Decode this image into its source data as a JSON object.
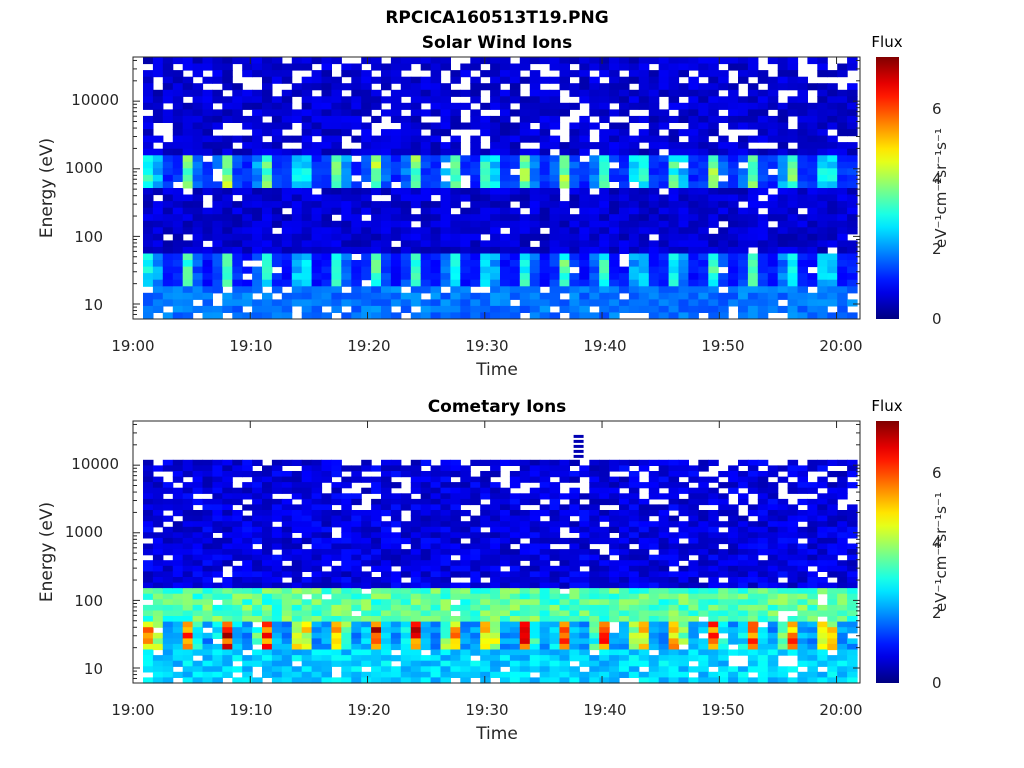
{
  "figure": {
    "title": "RPCICA160513T19.PNG"
  },
  "chart_data": [
    {
      "type": "heatmap",
      "title": "Solar Wind Ions",
      "xlabel": "Time",
      "ylabel": "Energy (eV)",
      "x_range": [
        "19:00",
        "20:02"
      ],
      "x_ticks": [
        "19:00",
        "19:10",
        "19:20",
        "19:30",
        "19:40",
        "19:50",
        "20:00"
      ],
      "y_scale": "log",
      "y_range": [
        6,
        45000
      ],
      "y_ticks": [
        "10",
        "100",
        "1000",
        "10000"
      ],
      "colorbar": {
        "label": "Flux",
        "unit": "eV⁻¹cm⁻²sr⁻¹s⁻¹",
        "range": [
          0,
          7.4
        ],
        "ticks": [
          "0",
          "2",
          "4",
          "6"
        ],
        "colormap": "jet"
      },
      "features": [
        {
          "energy_range_eV": [
            500,
            1500
          ],
          "level": 3.5,
          "period_min": 3.2,
          "description": "periodic solar wind beam"
        },
        {
          "energy_range_eV": [
            20,
            50
          ],
          "level": 3.0,
          "period_min": 3.2
        },
        {
          "energy_range_eV": [
            6,
            20
          ],
          "level": 1.8
        }
      ],
      "background_level": 0.6
    },
    {
      "type": "heatmap",
      "title": "Cometary Ions",
      "xlabel": "Time",
      "ylabel": "Energy (eV)",
      "x_range": [
        "19:00",
        "20:02"
      ],
      "x_ticks": [
        "19:00",
        "19:10",
        "19:20",
        "19:30",
        "19:40",
        "19:50",
        "20:00"
      ],
      "y_scale": "log",
      "y_range": [
        6,
        45000
      ],
      "y_ticks": [
        "10",
        "100",
        "1000",
        "10000"
      ],
      "colorbar": {
        "label": "Flux",
        "unit": "eV⁻¹cm⁻²sr⁻¹s⁻¹",
        "range": [
          0,
          7.4
        ],
        "ticks": [
          "0",
          "2",
          "4",
          "6"
        ],
        "colormap": "jet"
      },
      "features": [
        {
          "energy_range_eV": [
            20,
            50
          ],
          "level": 5.8,
          "period_min": 3.2,
          "description": "periodic cometary ion peak near 30 eV"
        },
        {
          "energy_range_eV": [
            50,
            150
          ],
          "level": 3.5
        },
        {
          "energy_range_eV": [
            6,
            20
          ],
          "level": 2.5
        }
      ],
      "data_ceiling_eV": 12000,
      "spike": {
        "time": "19:38",
        "energy_range_eV": [
          12000,
          28000
        ]
      },
      "background_level": 0.7
    }
  ]
}
